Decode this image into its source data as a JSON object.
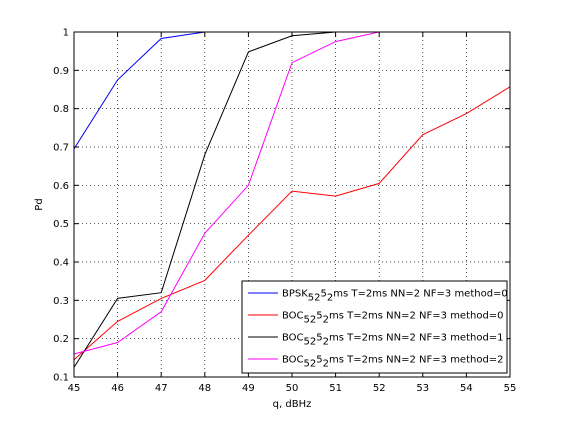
{
  "chart_data": {
    "type": "line",
    "title": "",
    "xlabel": "q, dBHz",
    "ylabel": "Pd",
    "xlim": [
      45,
      55
    ],
    "ylim": [
      0.1,
      1
    ],
    "xticks": [
      45,
      46,
      47,
      48,
      49,
      50,
      51,
      52,
      53,
      54,
      55
    ],
    "yticks": [
      0.1,
      0.2,
      0.3,
      0.4,
      0.5,
      0.6,
      0.7,
      0.8,
      0.9,
      1
    ],
    "ytick_labels": [
      "0.1",
      "0.2",
      "0.3",
      "0.4",
      "0.5",
      "0.6",
      "0.7",
      "0.8",
      "0.9",
      "1"
    ],
    "grid": true,
    "legend_position": "bottom-right",
    "series": [
      {
        "name_base": "BPSK",
        "name_sub": "5",
        "name_mid": "2",
        "name_sup": "5",
        "name_sub2": "2",
        "name_rest": "ms T=2ms NN=2 NF=3 method=0",
        "color": "#0000ff",
        "x": [
          45,
          46,
          47,
          48
        ],
        "y": [
          0.695,
          0.875,
          0.983,
          1.0
        ]
      },
      {
        "name_base": "BOC",
        "name_sub": "5",
        "name_mid": "2",
        "name_sup": "5",
        "name_sub2": "2",
        "name_rest": "ms T=2ms NN=2 NF=3 method=0",
        "color": "#ff0000",
        "x": [
          45,
          46,
          47,
          48,
          49,
          50,
          51,
          52,
          53,
          54,
          55
        ],
        "y": [
          0.145,
          0.245,
          0.305,
          0.352,
          0.47,
          0.585,
          0.572,
          0.605,
          0.732,
          0.787,
          0.857
        ]
      },
      {
        "name_base": "BOC",
        "name_sub": "5",
        "name_mid": "2",
        "name_sup": "5",
        "name_sub2": "2",
        "name_rest": "ms T=2ms NN=2 NF=3 method=1",
        "color": "#000000",
        "x": [
          45,
          46,
          47,
          48,
          49,
          50,
          51
        ],
        "y": [
          0.125,
          0.305,
          0.32,
          0.68,
          0.948,
          0.99,
          1.0
        ]
      },
      {
        "name_base": "BOC",
        "name_sub": "5",
        "name_mid": "2",
        "name_sup": "5",
        "name_sub2": "2",
        "name_rest": "ms T=2ms NN=2 NF=3 method=2",
        "color": "#ff00ff",
        "x": [
          45,
          46,
          47,
          48,
          49,
          50,
          51,
          52
        ],
        "y": [
          0.16,
          0.19,
          0.27,
          0.475,
          0.6,
          0.92,
          0.975,
          1.0
        ]
      }
    ]
  }
}
